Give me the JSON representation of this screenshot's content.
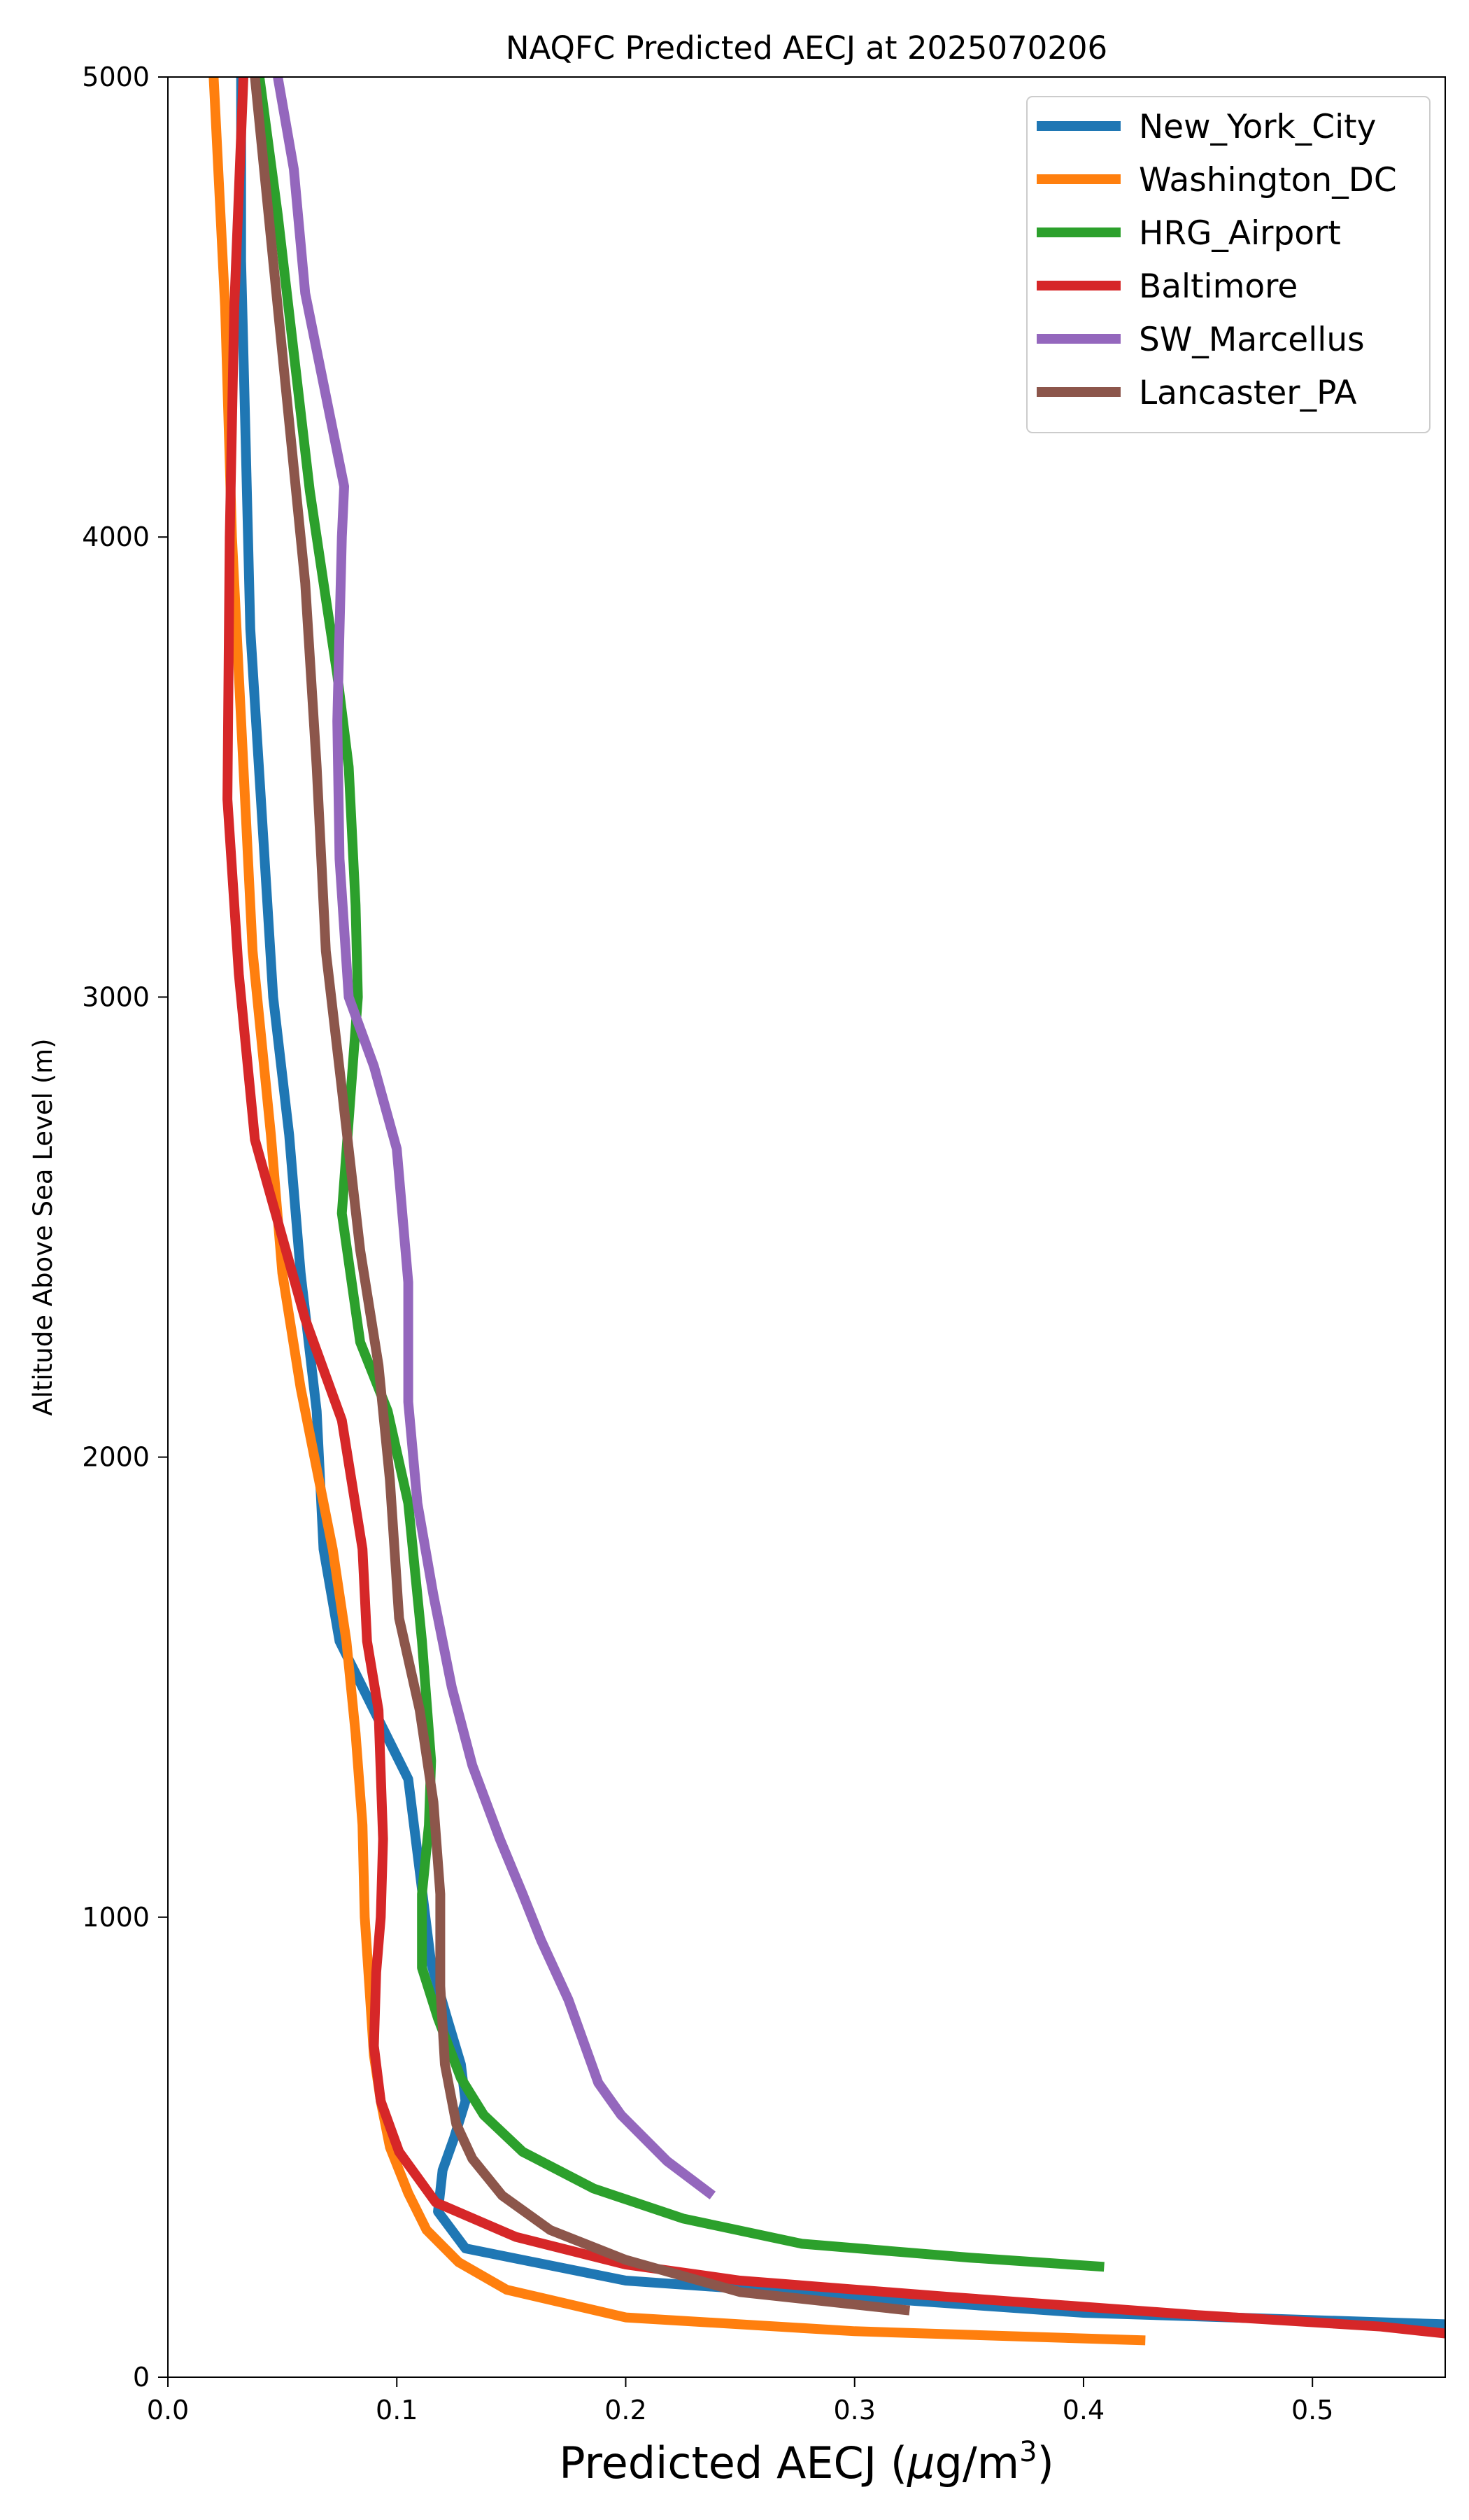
{
  "chart_data": {
    "type": "line",
    "title": "NAQFC Predicted AECJ at 2025070206",
    "xlabel": "Predicted AECJ (μg/m³)",
    "xlabel_parts": {
      "main": "Predicted AECJ (",
      "mu": "μ",
      "unit": "g/m",
      "sup": "3",
      "close": ")"
    },
    "ylabel": "Altitude Above Sea Level (m)",
    "xlim": [
      0,
      0.558
    ],
    "ylim": [
      0,
      5000
    ],
    "xticks": [
      0.0,
      0.1,
      0.2,
      0.3,
      0.4,
      0.5
    ],
    "xtick_labels": [
      "0.0",
      "0.1",
      "0.2",
      "0.3",
      "0.4",
      "0.5"
    ],
    "yticks": [
      0,
      1000,
      2000,
      3000,
      4000,
      5000
    ],
    "ytick_labels": [
      "0",
      "1000",
      "2000",
      "3000",
      "4000",
      "5000"
    ],
    "grid": false,
    "legend_position": "top-right",
    "series": [
      {
        "name": "New_York_City",
        "color": "#1f77b4",
        "points": [
          [
            0.558,
            115
          ],
          [
            0.4,
            140
          ],
          [
            0.2,
            210
          ],
          [
            0.13,
            280
          ],
          [
            0.118,
            360
          ],
          [
            0.12,
            450
          ],
          [
            0.125,
            520
          ],
          [
            0.13,
            600
          ],
          [
            0.128,
            680
          ],
          [
            0.122,
            780
          ],
          [
            0.115,
            900
          ],
          [
            0.11,
            1100
          ],
          [
            0.105,
            1300
          ],
          [
            0.09,
            1450
          ],
          [
            0.075,
            1600
          ],
          [
            0.068,
            1800
          ],
          [
            0.065,
            2100
          ],
          [
            0.058,
            2400
          ],
          [
            0.053,
            2700
          ],
          [
            0.046,
            3000
          ],
          [
            0.041,
            3400
          ],
          [
            0.036,
            3800
          ],
          [
            0.034,
            4200
          ],
          [
            0.032,
            4600
          ],
          [
            0.032,
            5000
          ]
        ]
      },
      {
        "name": "Washington_DC",
        "color": "#ff7f0e",
        "points": [
          [
            0.427,
            80
          ],
          [
            0.3,
            100
          ],
          [
            0.2,
            130
          ],
          [
            0.148,
            190
          ],
          [
            0.127,
            250
          ],
          [
            0.113,
            320
          ],
          [
            0.105,
            400
          ],
          [
            0.097,
            500
          ],
          [
            0.093,
            600
          ],
          [
            0.09,
            700
          ],
          [
            0.088,
            850
          ],
          [
            0.086,
            1000
          ],
          [
            0.085,
            1200
          ],
          [
            0.082,
            1400
          ],
          [
            0.078,
            1600
          ],
          [
            0.072,
            1800
          ],
          [
            0.066,
            1950
          ],
          [
            0.058,
            2150
          ],
          [
            0.05,
            2400
          ],
          [
            0.045,
            2700
          ],
          [
            0.037,
            3100
          ],
          [
            0.033,
            3500
          ],
          [
            0.028,
            4000
          ],
          [
            0.025,
            4500
          ],
          [
            0.02,
            5000
          ]
        ]
      },
      {
        "name": "HRG_Airport",
        "color": "#2ca02c",
        "points": [
          [
            0.409,
            240
          ],
          [
            0.35,
            260
          ],
          [
            0.277,
            290
          ],
          [
            0.225,
            345
          ],
          [
            0.186,
            410
          ],
          [
            0.155,
            490
          ],
          [
            0.138,
            570
          ],
          [
            0.128,
            650
          ],
          [
            0.118,
            780
          ],
          [
            0.111,
            890
          ],
          [
            0.111,
            1050
          ],
          [
            0.114,
            1200
          ],
          [
            0.115,
            1340
          ],
          [
            0.111,
            1600
          ],
          [
            0.105,
            1900
          ],
          [
            0.096,
            2100
          ],
          [
            0.084,
            2250
          ],
          [
            0.076,
            2530
          ],
          [
            0.08,
            2800
          ],
          [
            0.083,
            3000
          ],
          [
            0.082,
            3200
          ],
          [
            0.079,
            3500
          ],
          [
            0.074,
            3700
          ],
          [
            0.068,
            3900
          ],
          [
            0.062,
            4100
          ],
          [
            0.055,
            4400
          ],
          [
            0.048,
            4700
          ],
          [
            0.04,
            5000
          ]
        ]
      },
      {
        "name": "Baltimore",
        "color": "#d62728",
        "points": [
          [
            0.558,
            95
          ],
          [
            0.53,
            110
          ],
          [
            0.45,
            135
          ],
          [
            0.34,
            175
          ],
          [
            0.25,
            210
          ],
          [
            0.2,
            245
          ],
          [
            0.152,
            305
          ],
          [
            0.117,
            380
          ],
          [
            0.101,
            490
          ],
          [
            0.093,
            600
          ],
          [
            0.09,
            720
          ],
          [
            0.091,
            880
          ],
          [
            0.093,
            1000
          ],
          [
            0.094,
            1170
          ],
          [
            0.092,
            1450
          ],
          [
            0.087,
            1600
          ],
          [
            0.085,
            1800
          ],
          [
            0.076,
            2080
          ],
          [
            0.06,
            2300
          ],
          [
            0.038,
            2690
          ],
          [
            0.031,
            3050
          ],
          [
            0.026,
            3430
          ],
          [
            0.027,
            4000
          ],
          [
            0.029,
            4500
          ],
          [
            0.033,
            5000
          ]
        ]
      },
      {
        "name": "SW_Marcellus",
        "color": "#9467bd",
        "points": [
          [
            0.238,
            395
          ],
          [
            0.218,
            470
          ],
          [
            0.198,
            570
          ],
          [
            0.188,
            640
          ],
          [
            0.175,
            820
          ],
          [
            0.163,
            950
          ],
          [
            0.155,
            1050
          ],
          [
            0.145,
            1170
          ],
          [
            0.133,
            1330
          ],
          [
            0.124,
            1500
          ],
          [
            0.116,
            1700
          ],
          [
            0.109,
            1900
          ],
          [
            0.105,
            2120
          ],
          [
            0.105,
            2380
          ],
          [
            0.1,
            2670
          ],
          [
            0.09,
            2850
          ],
          [
            0.079,
            3000
          ],
          [
            0.075,
            3300
          ],
          [
            0.074,
            3600
          ],
          [
            0.075,
            3800
          ],
          [
            0.076,
            4000
          ],
          [
            0.077,
            4110
          ],
          [
            0.06,
            4530
          ],
          [
            0.055,
            4800
          ],
          [
            0.048,
            5000
          ]
        ]
      },
      {
        "name": "Lancaster_PA",
        "color": "#8c564b",
        "points": [
          [
            0.324,
            145
          ],
          [
            0.25,
            185
          ],
          [
            0.2,
            255
          ],
          [
            0.167,
            320
          ],
          [
            0.146,
            395
          ],
          [
            0.133,
            475
          ],
          [
            0.126,
            550
          ],
          [
            0.121,
            680
          ],
          [
            0.119,
            850
          ],
          [
            0.119,
            1050
          ],
          [
            0.116,
            1250
          ],
          [
            0.11,
            1450
          ],
          [
            0.101,
            1650
          ],
          [
            0.097,
            1950
          ],
          [
            0.092,
            2200
          ],
          [
            0.084,
            2450
          ],
          [
            0.076,
            2800
          ],
          [
            0.069,
            3100
          ],
          [
            0.067,
            3300
          ],
          [
            0.065,
            3500
          ],
          [
            0.06,
            3900
          ],
          [
            0.05,
            4400
          ],
          [
            0.044,
            4700
          ],
          [
            0.038,
            5000
          ]
        ]
      }
    ]
  }
}
